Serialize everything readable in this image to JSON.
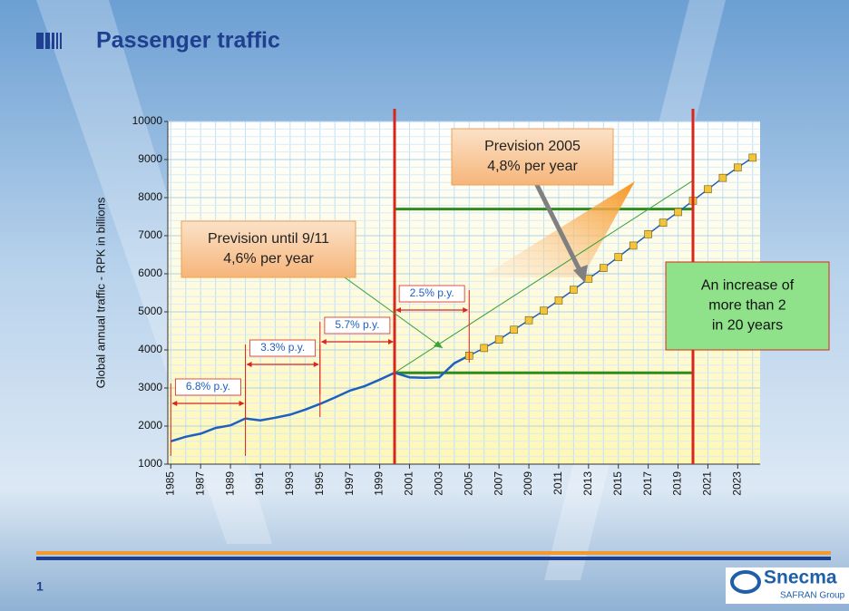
{
  "header": {
    "title": "Passenger traffic"
  },
  "chart_data": {
    "type": "line",
    "ylabel": "Global annual traffic -  RPK in billions",
    "xlim": [
      1984.8,
      2024.5
    ],
    "ylim": [
      1000,
      10000
    ],
    "xticks": [
      1985,
      1987,
      1989,
      1991,
      1993,
      1995,
      1997,
      1999,
      2001,
      2003,
      2005,
      2007,
      2009,
      2011,
      2013,
      2015,
      2017,
      2019,
      2021,
      2023
    ],
    "yticks": [
      1000,
      2000,
      3000,
      4000,
      5000,
      6000,
      7000,
      8000,
      9000,
      10000
    ],
    "grid": true,
    "series": [
      {
        "color": "#1f5fbf",
        "marker": "none",
        "x": [
          1985,
          1986,
          1987,
          1988,
          1989,
          1990,
          1991,
          1992,
          1993,
          1994,
          1995,
          1996,
          1997,
          1998,
          1999,
          2000,
          2001,
          2002,
          2003,
          2004,
          2005
        ],
        "values": [
          1600,
          1720,
          1800,
          1950,
          2020,
          2200,
          2150,
          2220,
          2300,
          2430,
          2580,
          2750,
          2930,
          3050,
          3220,
          3400,
          3280,
          3270,
          3280,
          3650,
          3850
        ]
      },
      {
        "color": "#1f5fbf",
        "marker": "square",
        "marker_color": "#f2c43c",
        "x": [
          2005,
          2006,
          2007,
          2008,
          2009,
          2010,
          2011,
          2012,
          2013,
          2014,
          2015,
          2016,
          2017,
          2018,
          2019,
          2020,
          2021,
          2022,
          2023,
          2024
        ],
        "values": [
          3850,
          4050,
          4270,
          4530,
          4780,
          5030,
          5300,
          5580,
          5870,
          6150,
          6440,
          6740,
          7040,
          7340,
          7620,
          7920,
          8220,
          8520,
          8790,
          9050
        ]
      },
      {
        "color": "#3aa13a",
        "marker": "none",
        "x": [
          2000,
          2020
        ],
        "values": [
          3400,
          8450
        ]
      }
    ],
    "vlines": {
      "color": "#d9261c",
      "values": [
        2000,
        2020
      ]
    },
    "hlines": {
      "color": "#2e8b1e",
      "from": 2000,
      "to": 2020,
      "values": [
        3400,
        7700
      ]
    },
    "periods": [
      {
        "from": 1985,
        "to": 1990,
        "label": "6.8% p.y."
      },
      {
        "from": 1990,
        "to": 1995,
        "label": "3.3% p.y."
      },
      {
        "from": 1995,
        "to": 2000,
        "label": "5.7% p.y."
      },
      {
        "from": 2000,
        "to": 2005,
        "label": "2.5% p.y."
      }
    ],
    "callouts": [
      {
        "lines": [
          "Prevision until 9/11",
          "4,6% per year"
        ]
      },
      {
        "lines": [
          "Prevision 2005",
          "4,8% per year"
        ]
      },
      {
        "lines": [
          "An increase of",
          "more than 2",
          "in 20 years"
        ]
      }
    ]
  },
  "footer": {
    "page": "1",
    "logo": "Snecma",
    "group": "SAFRAN Group"
  }
}
